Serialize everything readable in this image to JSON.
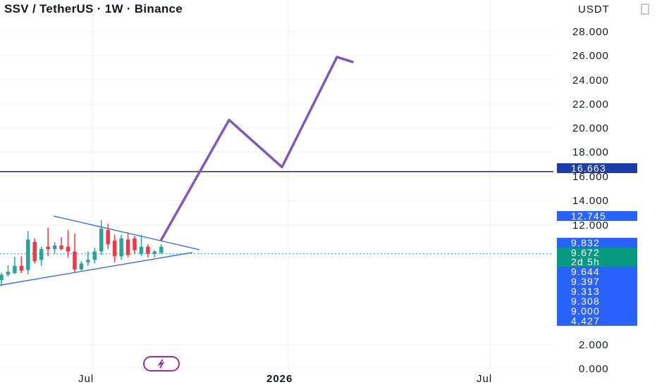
{
  "header": {
    "title": "SSV / TetherUS · 1W · Binance",
    "currency": "USDT"
  },
  "colors": {
    "up": "#26a69a",
    "down": "#f23645",
    "projection": "#7e57c2",
    "level_line": "#1a237e",
    "triangle": "#2962ff",
    "grid": "#eeeff2",
    "tag_blue": "#2962ff",
    "tag_navy": "#1d3ea8",
    "tag_green": "#089981",
    "flash": "#9c27b0"
  },
  "chart_data": {
    "type": "candlestick",
    "symbol": "SSV / TetherUS",
    "interval": "1W",
    "exchange": "Binance",
    "quote_currency": "USDT",
    "y_axis_ticks": [
      "28.000",
      "26.000",
      "24.000",
      "22.000",
      "20.000",
      "18.000",
      "16.000",
      "14.000",
      "12.000",
      "2.000",
      "0.000"
    ],
    "x_axis_ticks": [
      "Jul",
      "2026",
      "Jul"
    ],
    "ylim_display": [
      0,
      28
    ],
    "price_tags": [
      {
        "label": "16.663",
        "value": 16.663,
        "style": "navy"
      },
      {
        "label": "12.745",
        "value": 12.745,
        "style": "blue"
      },
      {
        "label": "9.832",
        "value": 9.832,
        "style": "blue"
      },
      {
        "label": "9.672",
        "value": 9.672,
        "style": "green"
      },
      {
        "label": "2d 5h",
        "value": null,
        "style": "green"
      },
      {
        "label": "9.644",
        "value": 9.644,
        "style": "blue"
      },
      {
        "label": "9.397",
        "value": 9.397,
        "style": "blue"
      },
      {
        "label": "9.313",
        "value": 9.313,
        "style": "blue"
      },
      {
        "label": "9.308",
        "value": 9.308,
        "style": "blue"
      },
      {
        "label": "9.000",
        "value": 9.0,
        "style": "blue"
      },
      {
        "label": "4.427",
        "value": 4.427,
        "style": "blue"
      }
    ],
    "horizontal_level": 16.663,
    "last_price": 9.672,
    "candles": [
      {
        "o": 7.4,
        "h": 8.02,
        "l": 6.9,
        "c": 7.85
      },
      {
        "o": 7.85,
        "h": 8.65,
        "l": 7.7,
        "c": 8.1
      },
      {
        "o": 8.0,
        "h": 9.35,
        "l": 7.9,
        "c": 8.6
      },
      {
        "o": 8.6,
        "h": 9.4,
        "l": 8.0,
        "c": 8.2
      },
      {
        "o": 8.25,
        "h": 11.5,
        "l": 7.9,
        "c": 10.8
      },
      {
        "o": 10.6,
        "h": 10.9,
        "l": 8.8,
        "c": 9.0
      },
      {
        "o": 9.1,
        "h": 10.2,
        "l": 8.6,
        "c": 10.0
      },
      {
        "o": 10.2,
        "h": 11.8,
        "l": 9.4,
        "c": 10.0
      },
      {
        "o": 10.0,
        "h": 10.6,
        "l": 9.6,
        "c": 10.3
      },
      {
        "o": 10.3,
        "h": 11.0,
        "l": 9.9,
        "c": 10.0
      },
      {
        "o": 10.2,
        "h": 11.6,
        "l": 9.3,
        "c": 9.8
      },
      {
        "o": 9.8,
        "h": 11.3,
        "l": 8.0,
        "c": 8.3
      },
      {
        "o": 8.3,
        "h": 9.0,
        "l": 8.2,
        "c": 8.8
      },
      {
        "o": 8.9,
        "h": 9.8,
        "l": 8.6,
        "c": 9.1
      },
      {
        "o": 9.1,
        "h": 10.1,
        "l": 8.8,
        "c": 9.8
      },
      {
        "o": 9.8,
        "h": 12.4,
        "l": 9.5,
        "c": 11.7
      },
      {
        "o": 11.6,
        "h": 12.1,
        "l": 10.0,
        "c": 10.4
      },
      {
        "o": 10.7,
        "h": 11.2,
        "l": 8.9,
        "c": 9.4
      },
      {
        "o": 9.4,
        "h": 11.2,
        "l": 9.1,
        "c": 10.9
      },
      {
        "o": 10.8,
        "h": 11.4,
        "l": 9.3,
        "c": 9.5
      },
      {
        "o": 10.9,
        "h": 11.1,
        "l": 9.6,
        "c": 9.9
      },
      {
        "o": 9.6,
        "h": 11.2,
        "l": 9.4,
        "c": 10.2
      },
      {
        "o": 10.2,
        "h": 10.4,
        "l": 9.3,
        "c": 9.6
      },
      {
        "o": 9.6,
        "h": 9.9,
        "l": 9.3,
        "c": 9.8
      },
      {
        "o": 9.7,
        "h": 10.4,
        "l": 9.6,
        "c": 10.2
      }
    ],
    "projection_path": [
      [
        0,
        10.8
      ],
      [
        1,
        20.7
      ],
      [
        2,
        16.8
      ],
      [
        3,
        25.9
      ],
      [
        4,
        25.5
      ]
    ],
    "triangle_pattern": {
      "apex_price": 9.95,
      "upper_start": 12.0,
      "lower_start": 7.1
    }
  }
}
